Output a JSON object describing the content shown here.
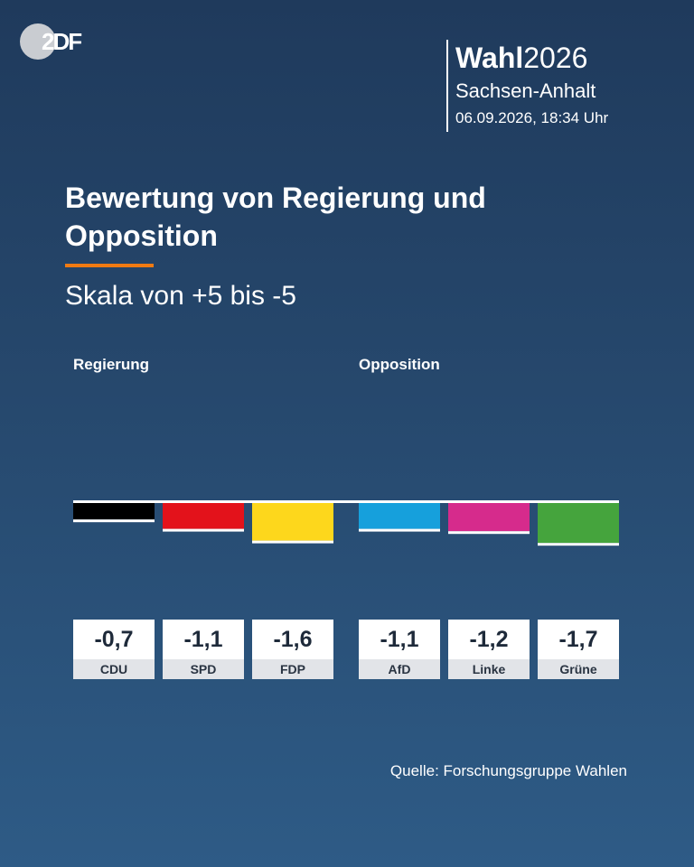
{
  "brand": {
    "logo_text": "2DF"
  },
  "election": {
    "label_bold": "Wahl",
    "label_year": "2026",
    "region": "Sachsen-Anhalt",
    "timestamp": "06.09.2026, 18:34 Uhr"
  },
  "title": "Bewertung von Regierung und Opposition",
  "subtitle": "Skala von +5 bis -5",
  "groups": {
    "government": "Regierung",
    "opposition": "Opposition"
  },
  "source": "Quelle: Forschungsgruppe Wahlen",
  "chart_data": {
    "type": "bar",
    "categories": [
      "CDU",
      "SPD",
      "FDP",
      "AfD",
      "Linke",
      "Grüne"
    ],
    "values": [
      -0.7,
      -1.1,
      -1.6,
      -1.1,
      -1.2,
      -1.7
    ],
    "display_values": [
      "-0,7",
      "-1,1",
      "-1,6",
      "-1,1",
      "-1,2",
      "-1,7"
    ],
    "groups": [
      "Regierung",
      "Regierung",
      "Regierung",
      "Opposition",
      "Opposition",
      "Opposition"
    ],
    "colors": [
      "#000000",
      "#e3121b",
      "#fdd71c",
      "#16a0dc",
      "#d62b8c",
      "#45a43d"
    ],
    "ylim": [
      -5,
      5
    ],
    "baseline": 0,
    "grid": false,
    "legend": "none"
  }
}
